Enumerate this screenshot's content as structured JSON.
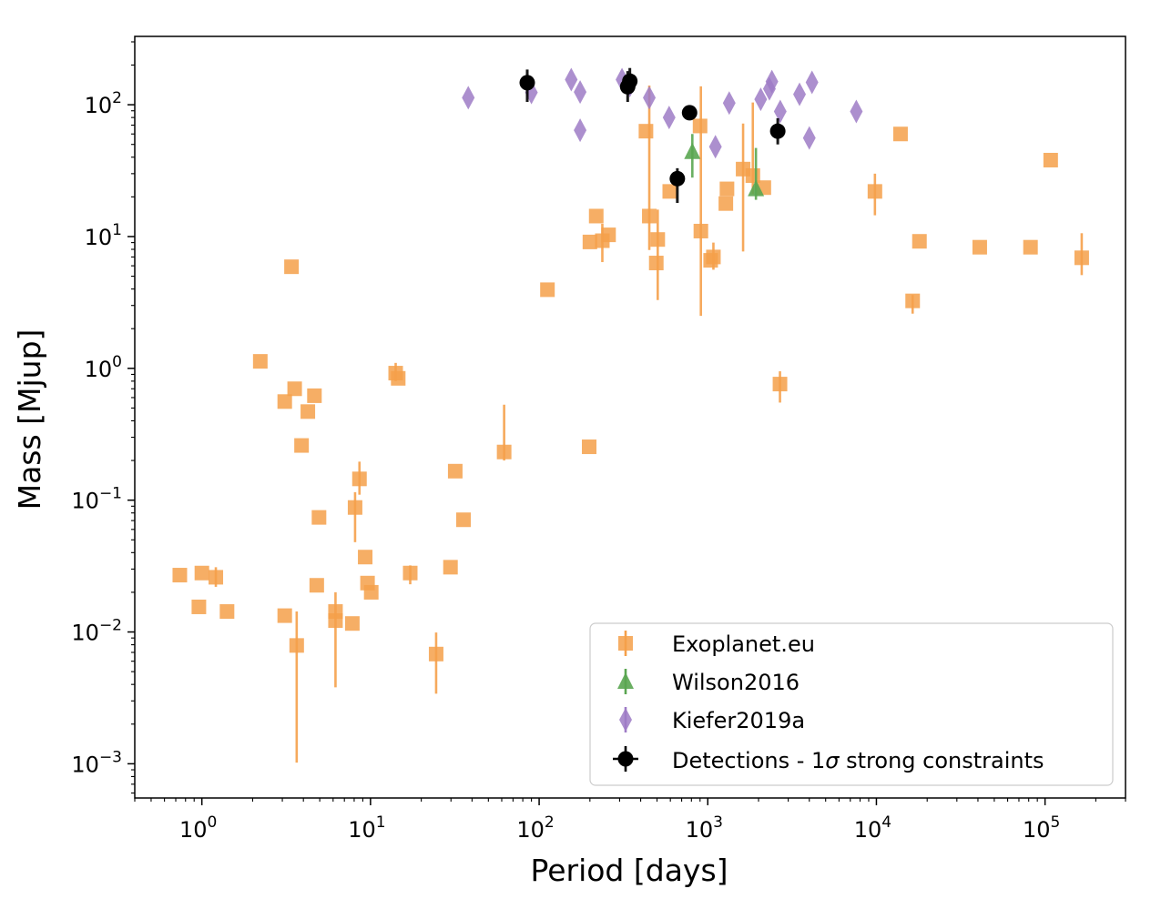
{
  "chart_data": {
    "type": "scatter",
    "xlabel": "Period [days]",
    "ylabel": "Mass [Mjup]",
    "xscale": "log",
    "yscale": "log",
    "xlim": [
      0.4,
      300000
    ],
    "ylim": [
      0.00055,
      330
    ],
    "x_ticks": [
      1,
      10,
      100,
      1000,
      10000,
      100000
    ],
    "y_ticks": [
      0.001,
      0.01,
      0.1,
      1,
      10,
      100
    ],
    "x_tick_labels": [
      {
        "base": "10",
        "exp": "0"
      },
      {
        "base": "10",
        "exp": "1"
      },
      {
        "base": "10",
        "exp": "2"
      },
      {
        "base": "10",
        "exp": "3"
      },
      {
        "base": "10",
        "exp": "4"
      },
      {
        "base": "10",
        "exp": "5"
      }
    ],
    "y_tick_labels": [
      {
        "base": "10",
        "exp": "−3"
      },
      {
        "base": "10",
        "exp": "−2"
      },
      {
        "base": "10",
        "exp": "−1"
      },
      {
        "base": "10",
        "exp": "0"
      },
      {
        "base": "10",
        "exp": "1"
      },
      {
        "base": "10",
        "exp": "2"
      }
    ],
    "grid": false,
    "legend_position": "lower right",
    "series": [
      {
        "name": "Exoplanet.eu",
        "marker": "square",
        "color": "#f5a04a",
        "points": [
          {
            "x": 0.74,
            "y": 0.027
          },
          {
            "x": 0.96,
            "y": 0.0155
          },
          {
            "x": 1.0,
            "y": 0.028
          },
          {
            "x": 1.21,
            "y": 0.026,
            "lo": 0.022,
            "hi": 0.031
          },
          {
            "x": 1.41,
            "y": 0.0143
          },
          {
            "x": 2.22,
            "y": 1.13
          },
          {
            "x": 3.1,
            "y": 0.0133
          },
          {
            "x": 3.1,
            "y": 0.56
          },
          {
            "x": 3.4,
            "y": 5.9
          },
          {
            "x": 3.55,
            "y": 0.7
          },
          {
            "x": 3.65,
            "y": 0.0079,
            "lo": 0.00102,
            "hi": 0.0143
          },
          {
            "x": 3.9,
            "y": 0.26
          },
          {
            "x": 4.25,
            "y": 0.47
          },
          {
            "x": 4.65,
            "y": 0.62
          },
          {
            "x": 4.8,
            "y": 0.0226
          },
          {
            "x": 4.95,
            "y": 0.074
          },
          {
            "x": 6.2,
            "y": 0.0143
          },
          {
            "x": 6.2,
            "y": 0.0122,
            "lo": 0.0038,
            "hi": 0.02
          },
          {
            "x": 7.8,
            "y": 0.0116
          },
          {
            "x": 8.1,
            "y": 0.088,
            "lo": 0.048,
            "hi": 0.115
          },
          {
            "x": 8.6,
            "y": 0.145,
            "lo": 0.11,
            "hi": 0.196
          },
          {
            "x": 9.3,
            "y": 0.037
          },
          {
            "x": 9.6,
            "y": 0.0235
          },
          {
            "x": 10.1,
            "y": 0.02
          },
          {
            "x": 14.1,
            "y": 0.92,
            "lo": 0.8,
            "hi": 1.1
          },
          {
            "x": 14.6,
            "y": 0.84
          },
          {
            "x": 17.2,
            "y": 0.028,
            "lo": 0.023,
            "hi": 0.032
          },
          {
            "x": 24.5,
            "y": 0.0068,
            "lo": 0.0034,
            "hi": 0.0099
          },
          {
            "x": 29.8,
            "y": 0.031
          },
          {
            "x": 31.8,
            "y": 0.166
          },
          {
            "x": 35.6,
            "y": 0.071
          },
          {
            "x": 62,
            "y": 0.232,
            "lo": 0.2,
            "hi": 0.53
          },
          {
            "x": 112,
            "y": 3.95
          },
          {
            "x": 198,
            "y": 0.254
          },
          {
            "x": 200,
            "y": 9.1
          },
          {
            "x": 218,
            "y": 14.3
          },
          {
            "x": 237,
            "y": 9.3,
            "lo": 6.4,
            "hi": 12.5
          },
          {
            "x": 258,
            "y": 10.3
          },
          {
            "x": 430,
            "y": 63
          },
          {
            "x": 450,
            "y": 14.3,
            "lo": 7.9,
            "hi": 140
          },
          {
            "x": 495,
            "y": 6.3
          },
          {
            "x": 505,
            "y": 9.5,
            "lo": 3.3,
            "hi": 16
          },
          {
            "x": 595,
            "y": 22
          },
          {
            "x": 900,
            "y": 69
          },
          {
            "x": 910,
            "y": 11,
            "lo": 2.5,
            "hi": 138
          },
          {
            "x": 1040,
            "y": 6.6
          },
          {
            "x": 1080,
            "y": 7.0,
            "lo": 5.6,
            "hi": 9
          },
          {
            "x": 1280,
            "y": 17.8
          },
          {
            "x": 1300,
            "y": 23
          },
          {
            "x": 1620,
            "y": 32.5,
            "lo": 7.7,
            "hi": 72
          },
          {
            "x": 1850,
            "y": 29,
            "lo": 21,
            "hi": 104
          },
          {
            "x": 2150,
            "y": 23.5
          },
          {
            "x": 2680,
            "y": 0.76,
            "lo": 0.55,
            "hi": 0.95
          },
          {
            "x": 9800,
            "y": 22,
            "lo": 14.5,
            "hi": 30
          },
          {
            "x": 13900,
            "y": 60
          },
          {
            "x": 16400,
            "y": 3.25,
            "lo": 2.6,
            "hi": 3.6
          },
          {
            "x": 18000,
            "y": 9.2
          },
          {
            "x": 41000,
            "y": 8.3
          },
          {
            "x": 82000,
            "y": 8.3
          },
          {
            "x": 108000,
            "y": 38
          },
          {
            "x": 165000,
            "y": 6.9,
            "lo": 5.1,
            "hi": 10.6
          }
        ]
      },
      {
        "name": "Wilson2016",
        "marker": "triangle",
        "color": "#5aa651",
        "points": [
          {
            "x": 810,
            "y": 44,
            "lo": 28,
            "hi": 60
          },
          {
            "x": 1930,
            "y": 23,
            "lo": 19,
            "hi": 47
          }
        ]
      },
      {
        "name": "Kiefer2019a",
        "marker": "diamond",
        "color": "#9e7bc6",
        "points": [
          {
            "x": 38,
            "y": 113
          },
          {
            "x": 90,
            "y": 124
          },
          {
            "x": 155,
            "y": 155
          },
          {
            "x": 175,
            "y": 125
          },
          {
            "x": 175,
            "y": 64
          },
          {
            "x": 310,
            "y": 155
          },
          {
            "x": 345,
            "y": 140
          },
          {
            "x": 450,
            "y": 113
          },
          {
            "x": 590,
            "y": 80
          },
          {
            "x": 1110,
            "y": 48
          },
          {
            "x": 1340,
            "y": 103
          },
          {
            "x": 2060,
            "y": 110
          },
          {
            "x": 2320,
            "y": 132
          },
          {
            "x": 2400,
            "y": 150
          },
          {
            "x": 2690,
            "y": 89
          },
          {
            "x": 3500,
            "y": 120
          },
          {
            "x": 4000,
            "y": 56
          },
          {
            "x": 4150,
            "y": 148
          },
          {
            "x": 7600,
            "y": 89
          }
        ]
      },
      {
        "name": "Detections - 1σ strong constraints",
        "marker": "circle",
        "color": "#000000",
        "points": [
          {
            "x": 85,
            "y": 147,
            "lo": 105,
            "hi": 185
          },
          {
            "x": 335,
            "y": 137,
            "lo": 105,
            "hi": 180
          },
          {
            "x": 345,
            "y": 151,
            "lo": 125,
            "hi": 190
          },
          {
            "x": 660,
            "y": 27.5,
            "lo": 18,
            "hi": 33
          },
          {
            "x": 780,
            "y": 87,
            "lo": 82,
            "hi": 92
          },
          {
            "x": 2600,
            "y": 63,
            "lo": 50,
            "hi": 79
          }
        ]
      }
    ],
    "legend": {
      "entries": [
        {
          "label": "Exoplanet.eu",
          "marker": "square",
          "color": "#f5a04a"
        },
        {
          "label": "Wilson2016",
          "marker": "triangle",
          "color": "#5aa651"
        },
        {
          "label": "Kiefer2019a",
          "marker": "diamond",
          "color": "#9e7bc6"
        },
        {
          "label_prefix": "Detections - 1",
          "label_symbol": "σ",
          "label_suffix": " strong constraints",
          "marker": "circle",
          "color": "#000000"
        }
      ]
    }
  }
}
